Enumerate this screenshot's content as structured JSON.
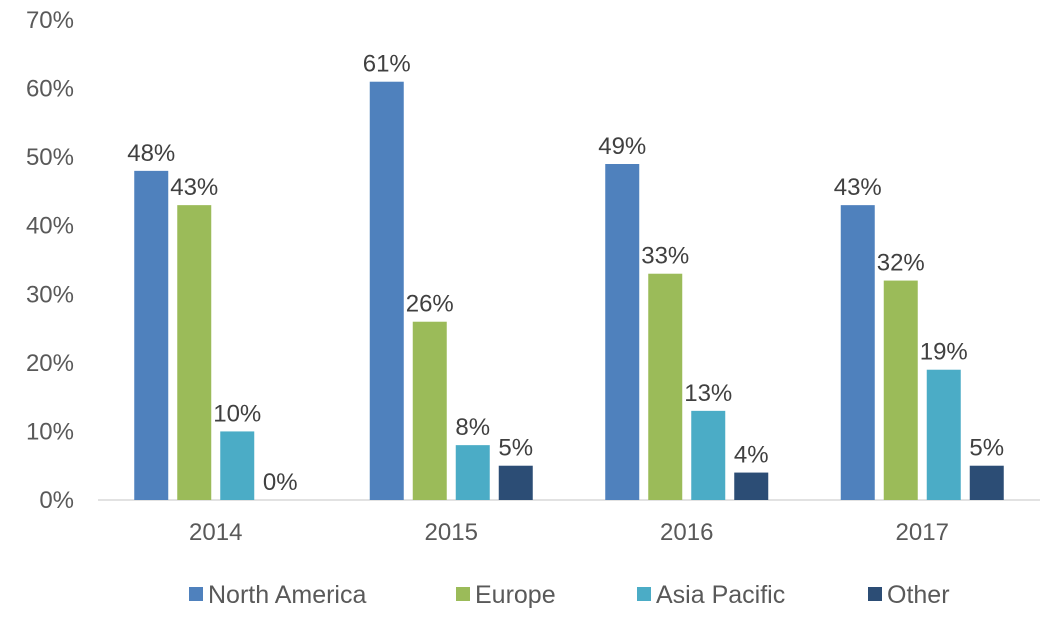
{
  "chart_data": {
    "type": "bar",
    "categories": [
      "2014",
      "2015",
      "2016",
      "2017"
    ],
    "series": [
      {
        "name": "North America",
        "color": "#4F81BD",
        "values": [
          48,
          61,
          49,
          43
        ],
        "labels": [
          "48%",
          "61%",
          "49%",
          "43%"
        ]
      },
      {
        "name": "Europe",
        "color": "#9BBB59",
        "values": [
          43,
          26,
          33,
          32
        ],
        "labels": [
          "43%",
          "26%",
          "33%",
          "32%"
        ]
      },
      {
        "name": "Asia Pacific",
        "color": "#4BACC6",
        "values": [
          10,
          8,
          13,
          19
        ],
        "labels": [
          "10%",
          "8%",
          "13%",
          "19%"
        ]
      },
      {
        "name": "Other",
        "color": "#2C4D75",
        "values": [
          0,
          5,
          4,
          5
        ],
        "labels": [
          "0%",
          "5%",
          "4%",
          "5%"
        ]
      }
    ],
    "yticks": [
      "0%",
      "10%",
      "20%",
      "30%",
      "40%",
      "50%",
      "60%",
      "70%"
    ],
    "ylim": [
      0,
      70
    ],
    "grid": false,
    "legend_position": "bottom"
  }
}
